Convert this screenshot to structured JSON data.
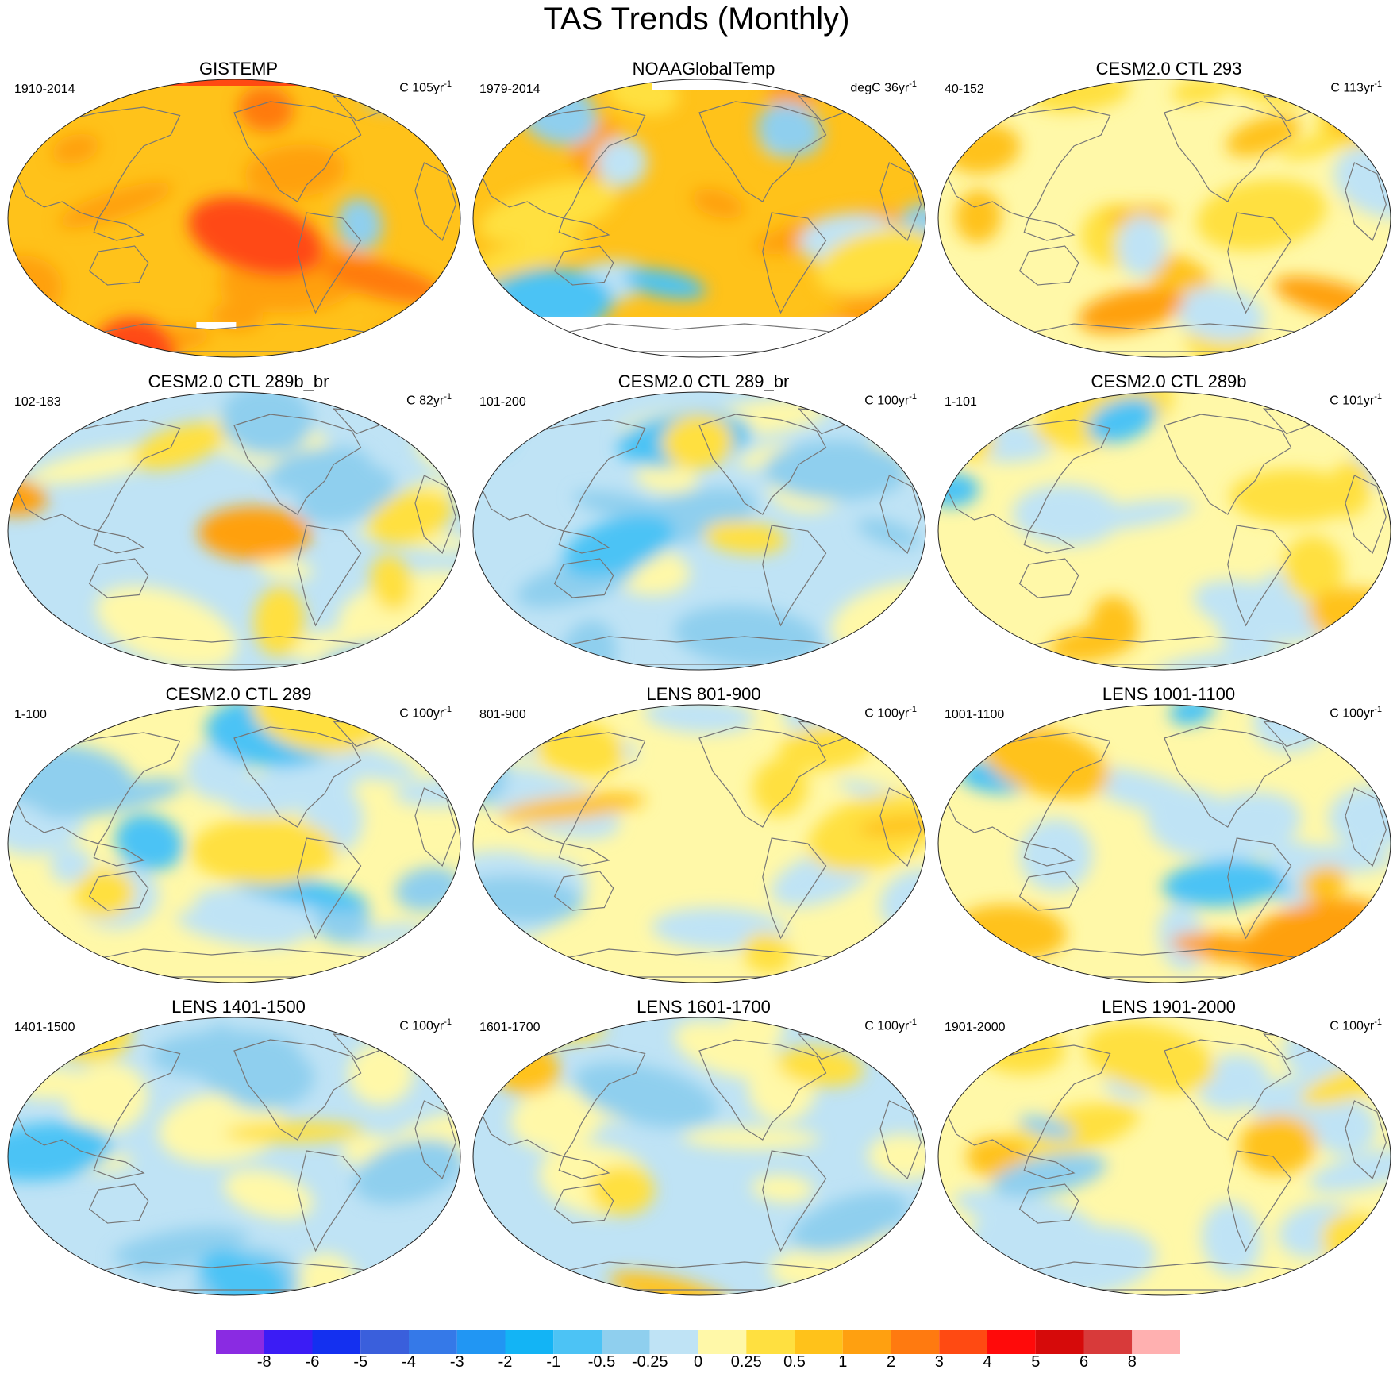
{
  "title": "TAS Trends (Monthly)",
  "panels": [
    {
      "title": "GISTEMP",
      "left": "1910-2014",
      "right": "C 105yr",
      "sup": "-1",
      "palette": "warm_strong",
      "missing": "antarctic_strip"
    },
    {
      "title": "NOAAGlobalTemp",
      "left": "1979-2014",
      "right": "degC 36yr",
      "sup": "-1",
      "palette": "warm_pacific_cold",
      "missing": "antarctica"
    },
    {
      "title": "CESM2.0 CTL 293",
      "left": "40-152",
      "right": "C 113yr",
      "sup": "-1",
      "palette": "mild_warm"
    },
    {
      "title": "CESM2.0 CTL 289b_br",
      "left": "102-183",
      "right": "C 82yr",
      "sup": "-1",
      "palette": "mixed_arctic_warm"
    },
    {
      "title": "CESM2.0 CTL 289_br",
      "left": "101-200",
      "right": "C 100yr",
      "sup": "-1",
      "palette": "mixed_cool"
    },
    {
      "title": "CESM2.0 CTL 289b",
      "left": "1-101",
      "right": "C 101yr",
      "sup": "-1",
      "palette": "mixed_arctic_warm2"
    },
    {
      "title": "CESM2.0 CTL 289",
      "left": "1-100",
      "right": "C 100yr",
      "sup": "-1",
      "palette": "cool_north"
    },
    {
      "title": "LENS 801-900",
      "left": "801-900",
      "right": "C 100yr",
      "sup": "-1",
      "palette": "mixed"
    },
    {
      "title": "LENS 1001-1100",
      "left": "1001-1100",
      "right": "C 100yr",
      "sup": "-1",
      "palette": "cool_north_warm_south"
    },
    {
      "title": "LENS 1401-1500",
      "left": "1401-1500",
      "right": "C 100yr",
      "sup": "-1",
      "palette": "mixed_cool"
    },
    {
      "title": "LENS 1601-1700",
      "left": "1601-1700",
      "right": "C 100yr",
      "sup": "-1",
      "palette": "mixed_cool2"
    },
    {
      "title": "LENS 1901-2000",
      "left": "1901-2000",
      "right": "C 100yr",
      "sup": "-1",
      "palette": "mixed"
    }
  ],
  "colorbar": {
    "colors": [
      "#8a2be2",
      "#3b1cf5",
      "#1430f0",
      "#3a5fdc",
      "#3579e8",
      "#2196f3",
      "#13b4f5",
      "#4cc3f5",
      "#8fcfee",
      "#bfe3f5",
      "#fff8a8",
      "#ffe040",
      "#ffc21a",
      "#ffa010",
      "#ff7a10",
      "#ff4a12",
      "#ff0a0a",
      "#d60a0a",
      "#d83a3a",
      "#ffb0b0"
    ],
    "labels": [
      "-8",
      "-6",
      "-5",
      "-4",
      "-3",
      "-2",
      "-1",
      "-0.5",
      "-0.25",
      "0",
      "0.25",
      "0.5",
      "1",
      "2",
      "3",
      "4",
      "5",
      "6",
      "8"
    ]
  }
}
